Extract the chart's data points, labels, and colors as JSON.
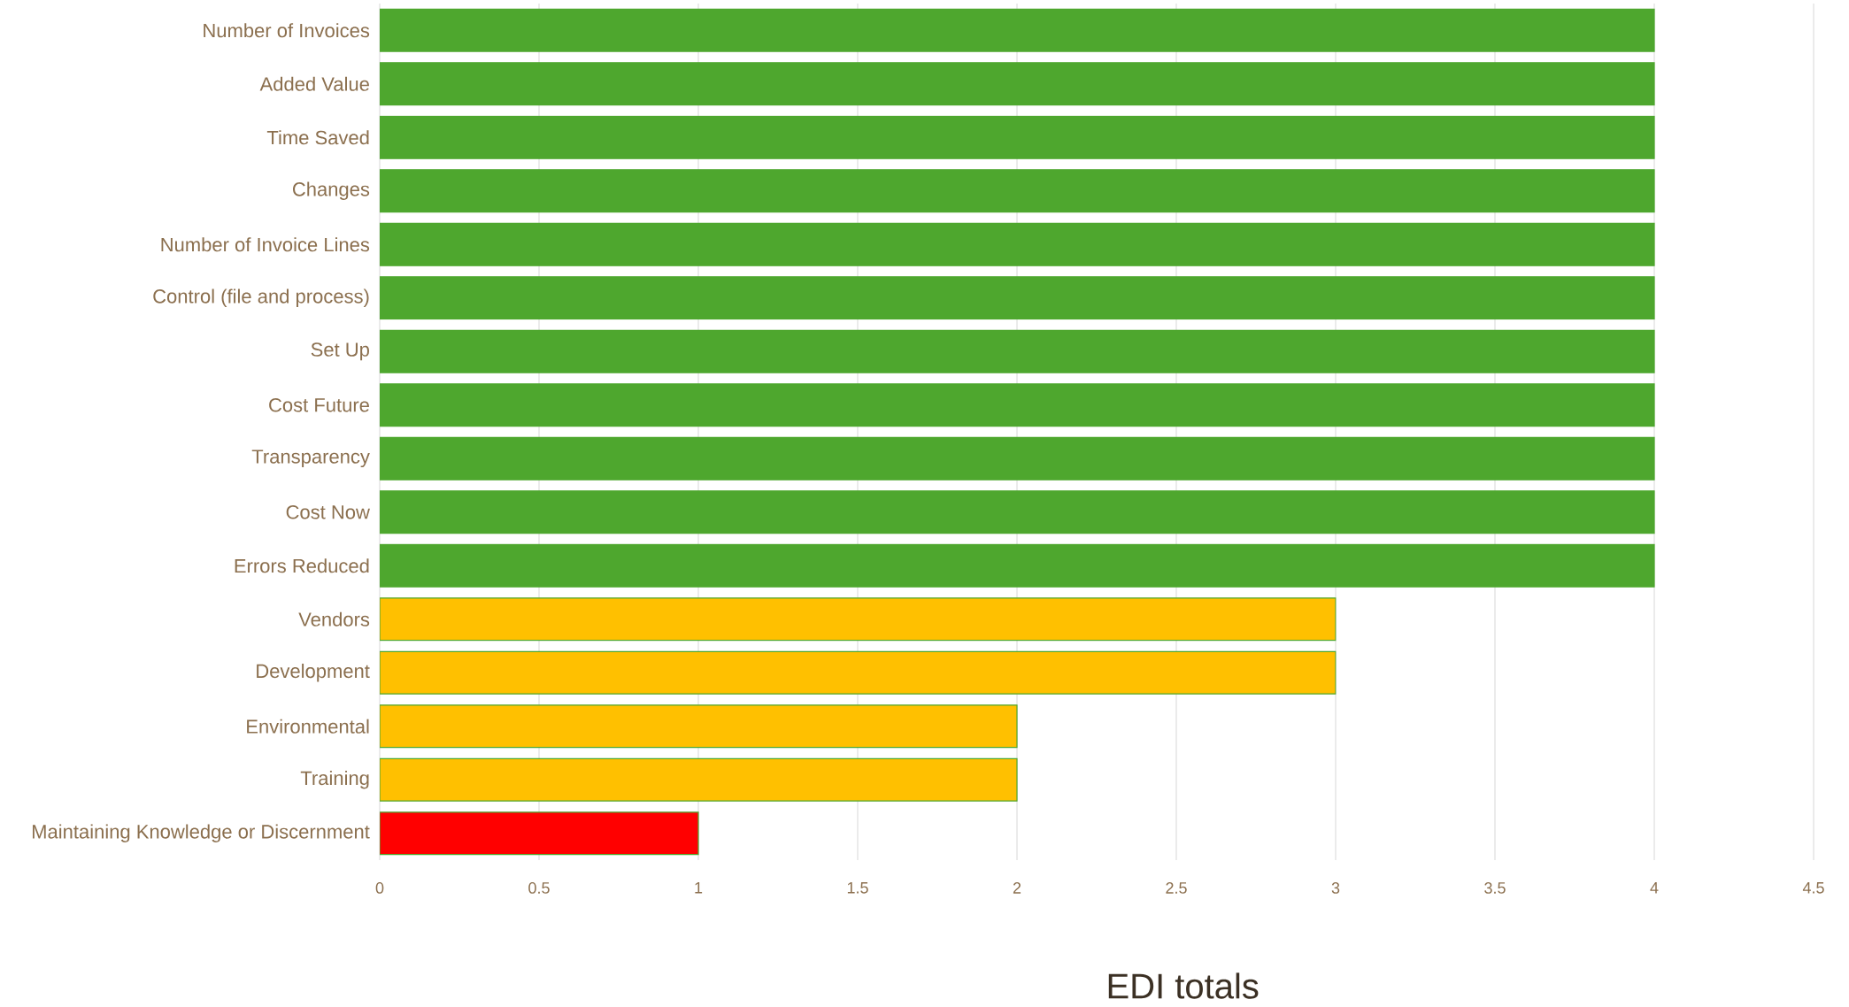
{
  "chart_data": {
    "type": "bar",
    "orientation": "horizontal",
    "xlabel": "EDI totals",
    "categories": [
      "Number of Invoices",
      "Added Value",
      "Time Saved",
      "Changes",
      "Number of Invoice Lines",
      "Control (file and process)",
      "Set Up",
      "Cost Future",
      "Transparency",
      "Cost Now",
      "Errors Reduced",
      "Vendors",
      "Development",
      "Environmental",
      "Training",
      "Maintaining Knowledge or Discernment"
    ],
    "values": [
      4,
      4,
      4,
      4,
      4,
      4,
      4,
      4,
      4,
      4,
      4,
      3,
      3,
      2,
      2,
      1
    ],
    "colors": [
      "#4ea72e",
      "#4ea72e",
      "#4ea72e",
      "#4ea72e",
      "#4ea72e",
      "#4ea72e",
      "#4ea72e",
      "#4ea72e",
      "#4ea72e",
      "#4ea72e",
      "#4ea72e",
      "#ffc000",
      "#ffc000",
      "#ffc000",
      "#ffc000",
      "#ff0000"
    ],
    "xlim": [
      0,
      4.5
    ],
    "xticks": [
      0,
      0.5,
      1,
      1.5,
      2,
      2.5,
      3,
      3.5,
      4,
      4.5
    ],
    "grid": "x"
  }
}
